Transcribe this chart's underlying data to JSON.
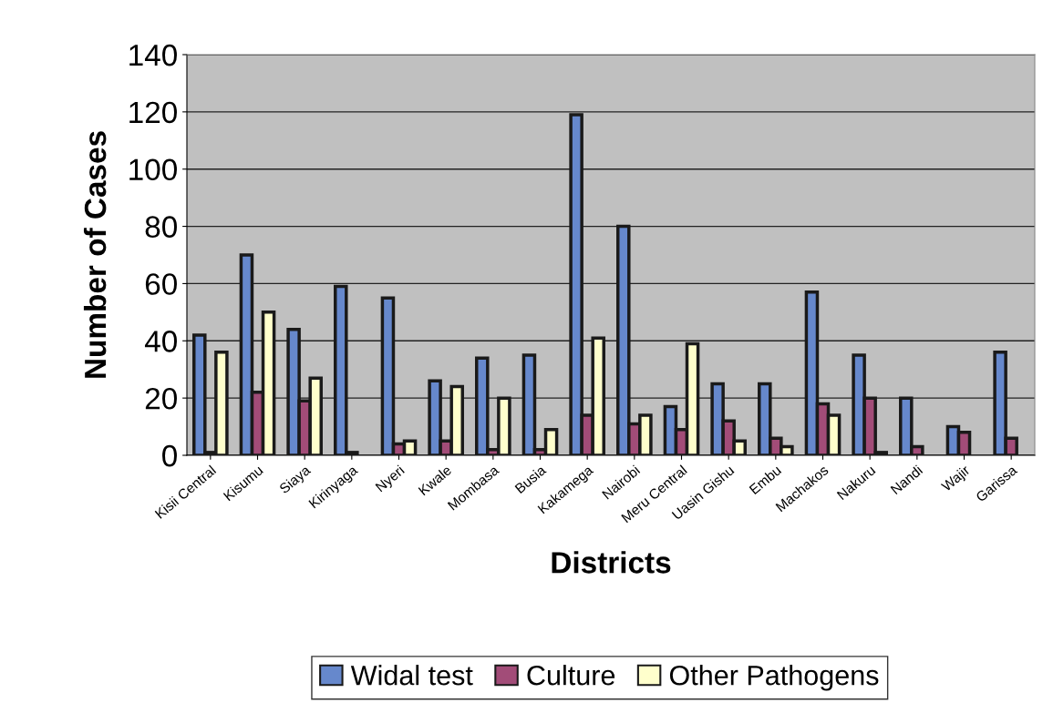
{
  "chart_data": {
    "type": "bar",
    "xlabel": "Districts",
    "ylabel": "Number of Cases",
    "categories": [
      "Kisii Central",
      "Kisumu",
      "Siaya",
      "Kirinyaga",
      "Nyeri",
      "Kwale",
      "Mombasa",
      "Busia",
      "Kakamega",
      "Nairobi",
      "Meru Central",
      "Uasin Gishu",
      "Embu",
      "Machakos",
      "Nakuru",
      "Nandi",
      "Wajir",
      "Garissa"
    ],
    "series": [
      {
        "name": "Widal test",
        "color": "#6688cc",
        "values": [
          42,
          70,
          44,
          59,
          55,
          26,
          34,
          35,
          119,
          80,
          17,
          25,
          25,
          57,
          35,
          20,
          10,
          36
        ]
      },
      {
        "name": "Culture",
        "color": "#a24c78",
        "values": [
          1,
          22,
          19,
          1,
          4,
          5,
          2,
          2,
          14,
          11,
          9,
          12,
          6,
          18,
          20,
          3,
          8,
          6
        ]
      },
      {
        "name": "Other Pathogens",
        "color": "#ffffcc",
        "values": [
          36,
          50,
          27,
          null,
          5,
          24,
          20,
          9,
          41,
          14,
          39,
          5,
          3,
          14,
          1,
          null,
          null,
          null
        ]
      }
    ],
    "ylim": [
      0,
      140
    ],
    "yticks": [
      0,
      20,
      40,
      60,
      80,
      100,
      120,
      140
    ],
    "grid": "y",
    "legend": "bottom"
  }
}
